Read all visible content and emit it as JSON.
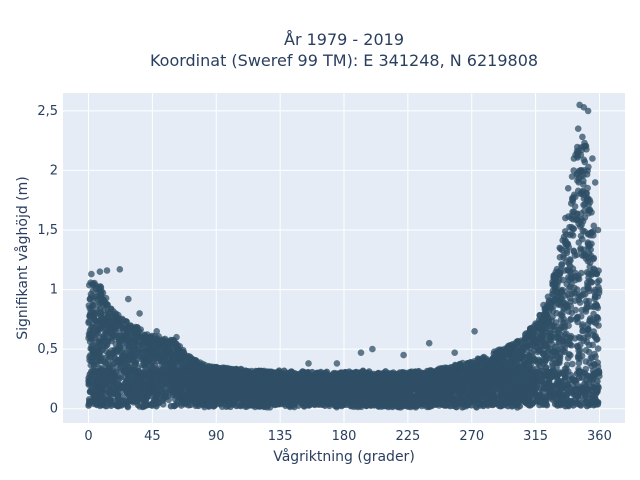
{
  "chart_data": {
    "type": "scatter",
    "title": "År 1979 - 2019",
    "subtitle": "Koordinat (Sweref 99 TM): E 341248, N 6219808",
    "xlabel": "Vågriktning (grader)",
    "ylabel": "Signifikant våghöjd (m)",
    "xlim": [
      -18,
      378
    ],
    "ylim": [
      -0.12,
      2.65
    ],
    "x_ticks": [
      0,
      45,
      90,
      135,
      180,
      225,
      270,
      315,
      360
    ],
    "x_tick_labels": [
      "0",
      "45",
      "90",
      "135",
      "180",
      "225",
      "270",
      "315",
      "360"
    ],
    "y_ticks": [
      0,
      0.5,
      1,
      1.5,
      2,
      2.5
    ],
    "y_tick_labels": [
      "0",
      "0,5",
      "1",
      "1,5",
      "2",
      "2,5"
    ],
    "grid": true,
    "legend": "none",
    "colors": {
      "marker": "#2f4f66",
      "plot_background": "#e5ecf6",
      "grid": "#ffffff",
      "text": "#2a3f5f"
    },
    "envelope": {
      "direction_deg": [
        0,
        5,
        10,
        15,
        20,
        30,
        45,
        60,
        70,
        80,
        90,
        120,
        150,
        180,
        210,
        240,
        270,
        290,
        300,
        310,
        320,
        330,
        335,
        340,
        345,
        350,
        355,
        360
      ],
      "max_height_m": [
        1.05,
        1.12,
        1.0,
        0.85,
        0.8,
        0.72,
        0.62,
        0.58,
        0.45,
        0.38,
        0.35,
        0.32,
        0.3,
        0.3,
        0.3,
        0.32,
        0.4,
        0.5,
        0.55,
        0.65,
        0.85,
        1.2,
        1.5,
        1.9,
        2.3,
        2.3,
        1.7,
        1.1
      ]
    },
    "outlier_points": [
      {
        "x": 2,
        "y": 1.13
      },
      {
        "x": 8,
        "y": 1.15
      },
      {
        "x": 13,
        "y": 1.16
      },
      {
        "x": 22,
        "y": 1.17
      },
      {
        "x": 28,
        "y": 0.92
      },
      {
        "x": 36,
        "y": 0.8
      },
      {
        "x": 48,
        "y": 0.65
      },
      {
        "x": 62,
        "y": 0.6
      },
      {
        "x": 155,
        "y": 0.38
      },
      {
        "x": 175,
        "y": 0.38
      },
      {
        "x": 192,
        "y": 0.47
      },
      {
        "x": 200,
        "y": 0.5
      },
      {
        "x": 222,
        "y": 0.45
      },
      {
        "x": 240,
        "y": 0.55
      },
      {
        "x": 258,
        "y": 0.47
      },
      {
        "x": 272,
        "y": 0.65
      },
      {
        "x": 328,
        "y": 1.1
      },
      {
        "x": 332,
        "y": 1.35
      },
      {
        "x": 336,
        "y": 1.6
      },
      {
        "x": 338,
        "y": 1.85
      },
      {
        "x": 342,
        "y": 2.1
      },
      {
        "x": 345,
        "y": 2.35
      },
      {
        "x": 346,
        "y": 2.55
      },
      {
        "x": 349,
        "y": 2.53
      },
      {
        "x": 352,
        "y": 2.5
      },
      {
        "x": 355,
        "y": 2.1
      },
      {
        "x": 357,
        "y": 1.9
      },
      {
        "x": 359,
        "y": 1.5
      }
    ]
  }
}
